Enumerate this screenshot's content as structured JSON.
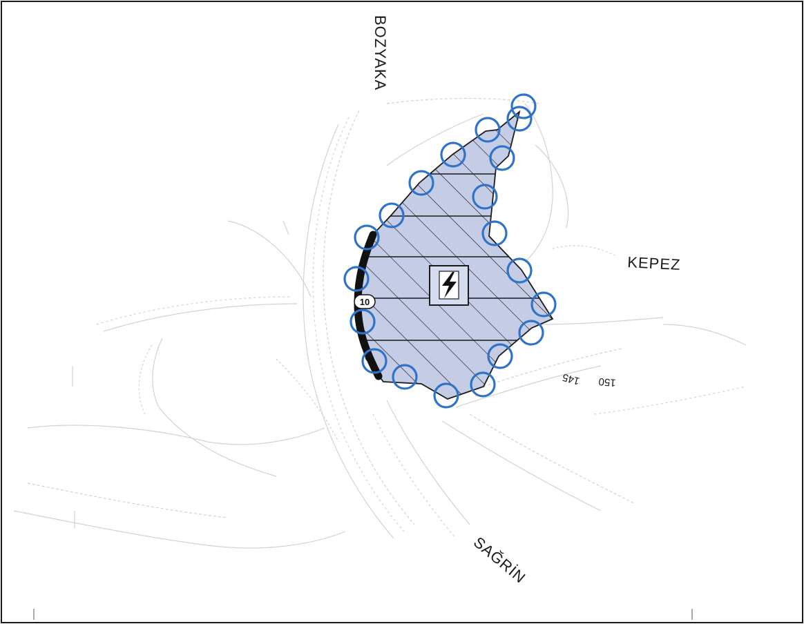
{
  "labels": {
    "bozyaka": "BOZYAKA",
    "kepez": "KEPEZ",
    "sagrin": "SAĞRİN",
    "contour_145": "145",
    "contour_150": "150",
    "road_width": "10"
  },
  "colors": {
    "parcel_fill": "#c5cde6",
    "parcel_stroke": "#1a1a1a",
    "circle_stroke": "#2f73c9",
    "road_fill": "#111111",
    "background_lines": "#cfcfcf",
    "frame": "#1a1a1a"
  },
  "icons": {
    "parcel_symbol": "electricity-substation-icon",
    "marker": "boundary-circle-icon"
  }
}
